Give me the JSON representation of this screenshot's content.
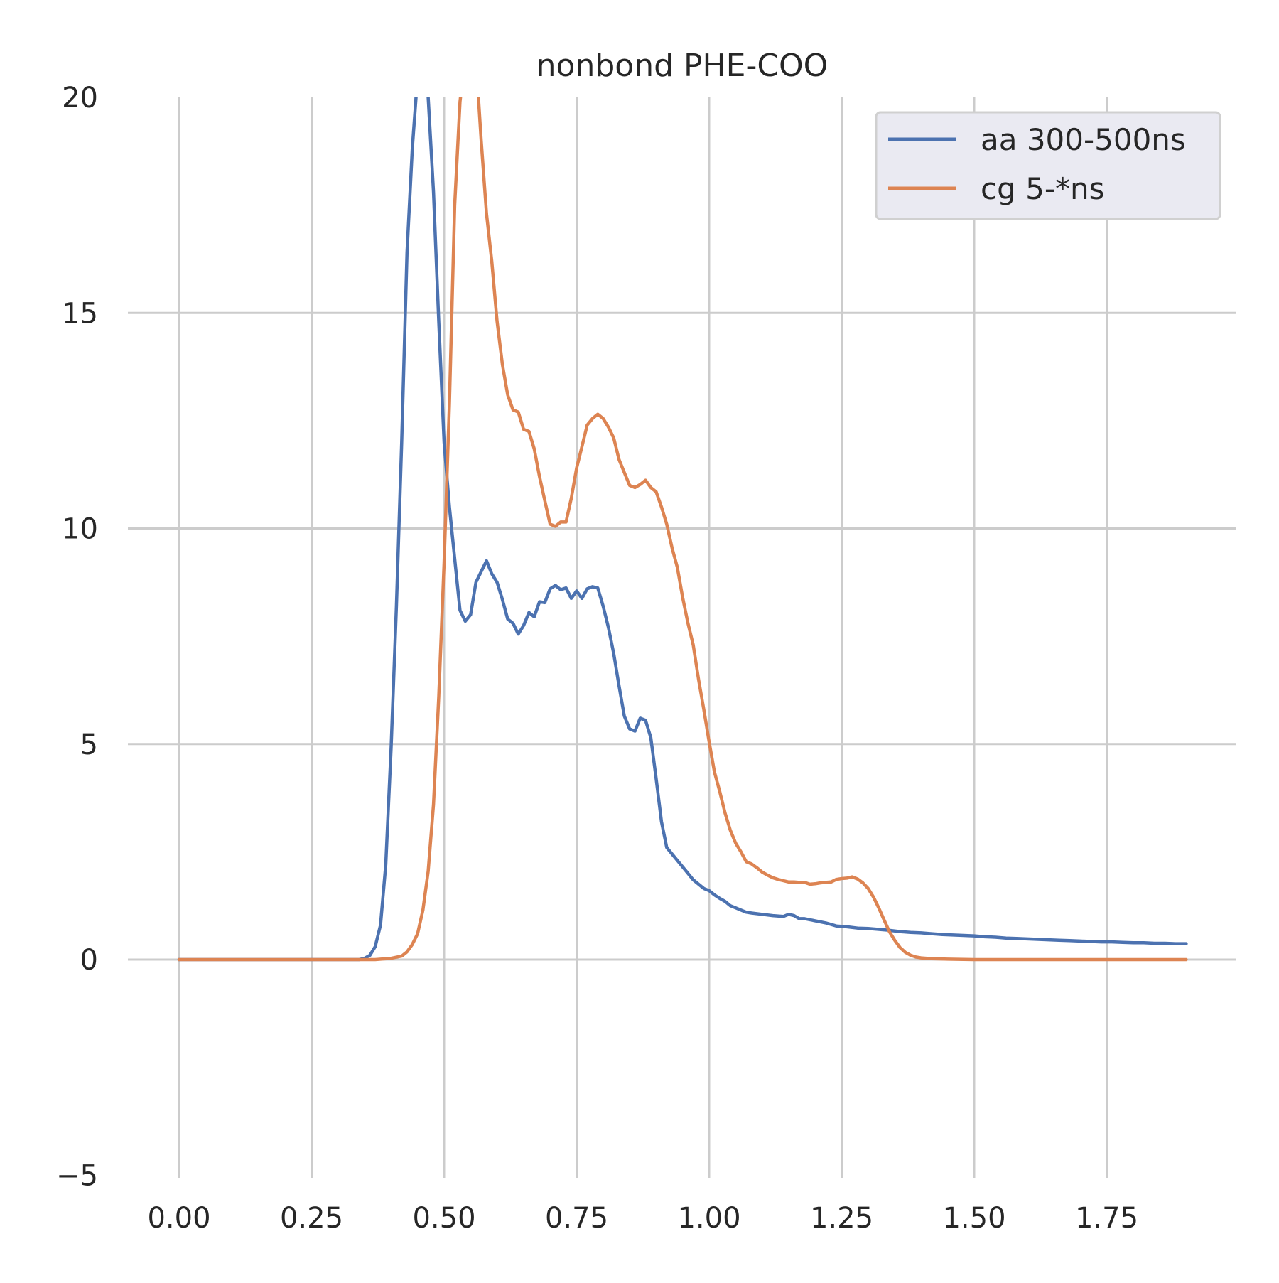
{
  "chart_data": {
    "type": "line",
    "title": "nonbond PHE-COO",
    "xlabel": "",
    "ylabel": "",
    "xlim": [
      -0.09,
      2.0
    ],
    "ylim": [
      -5,
      20
    ],
    "grid": true,
    "legend_position": "top-right",
    "x_ticks": [
      {
        "value": 0.0,
        "label": "0.00"
      },
      {
        "value": 0.25,
        "label": "0.25"
      },
      {
        "value": 0.5,
        "label": "0.50"
      },
      {
        "value": 0.75,
        "label": "0.75"
      },
      {
        "value": 1.0,
        "label": "1.00"
      },
      {
        "value": 1.25,
        "label": "1.25"
      },
      {
        "value": 1.5,
        "label": "1.50"
      },
      {
        "value": 1.75,
        "label": "1.75"
      }
    ],
    "y_ticks": [
      {
        "value": -5,
        "label": "−5"
      },
      {
        "value": 0,
        "label": "0"
      },
      {
        "value": 5,
        "label": "5"
      },
      {
        "value": 10,
        "label": "10"
      },
      {
        "value": 15,
        "label": "15"
      },
      {
        "value": 20,
        "label": "20"
      }
    ],
    "series": [
      {
        "name": "aa 300-500ns",
        "color": "#4c72b0",
        "points": [
          [
            0.0,
            0.0
          ],
          [
            0.1,
            0.0
          ],
          [
            0.2,
            0.0
          ],
          [
            0.3,
            0.0
          ],
          [
            0.34,
            0.0
          ],
          [
            0.35,
            0.03
          ],
          [
            0.36,
            0.1
          ],
          [
            0.37,
            0.3
          ],
          [
            0.38,
            0.8
          ],
          [
            0.39,
            2.2
          ],
          [
            0.4,
            4.9
          ],
          [
            0.41,
            8.2
          ],
          [
            0.42,
            12.0
          ],
          [
            0.43,
            16.4
          ],
          [
            0.44,
            18.8
          ],
          [
            0.45,
            20.5
          ],
          [
            0.46,
            21.5
          ],
          [
            0.47,
            20.0
          ],
          [
            0.48,
            17.8
          ],
          [
            0.49,
            14.8
          ],
          [
            0.5,
            12.0
          ],
          [
            0.51,
            10.5
          ],
          [
            0.52,
            9.3
          ],
          [
            0.53,
            8.1
          ],
          [
            0.54,
            7.85
          ],
          [
            0.55,
            8.0
          ],
          [
            0.56,
            8.75
          ],
          [
            0.57,
            9.0
          ],
          [
            0.58,
            9.25
          ],
          [
            0.59,
            8.95
          ],
          [
            0.6,
            8.75
          ],
          [
            0.61,
            8.35
          ],
          [
            0.62,
            7.9
          ],
          [
            0.63,
            7.8
          ],
          [
            0.64,
            7.55
          ],
          [
            0.65,
            7.75
          ],
          [
            0.66,
            8.05
          ],
          [
            0.67,
            7.95
          ],
          [
            0.68,
            8.3
          ],
          [
            0.69,
            8.28
          ],
          [
            0.7,
            8.6
          ],
          [
            0.71,
            8.68
          ],
          [
            0.72,
            8.58
          ],
          [
            0.73,
            8.62
          ],
          [
            0.74,
            8.38
          ],
          [
            0.75,
            8.55
          ],
          [
            0.76,
            8.38
          ],
          [
            0.77,
            8.6
          ],
          [
            0.78,
            8.65
          ],
          [
            0.79,
            8.62
          ],
          [
            0.8,
            8.2
          ],
          [
            0.81,
            7.7
          ],
          [
            0.82,
            7.1
          ],
          [
            0.83,
            6.35
          ],
          [
            0.84,
            5.65
          ],
          [
            0.85,
            5.35
          ],
          [
            0.86,
            5.3
          ],
          [
            0.87,
            5.6
          ],
          [
            0.88,
            5.55
          ],
          [
            0.89,
            5.15
          ],
          [
            0.9,
            4.2
          ],
          [
            0.91,
            3.2
          ],
          [
            0.92,
            2.6
          ],
          [
            0.93,
            2.45
          ],
          [
            0.94,
            2.3
          ],
          [
            0.95,
            2.15
          ],
          [
            0.96,
            2.0
          ],
          [
            0.97,
            1.85
          ],
          [
            0.98,
            1.75
          ],
          [
            0.99,
            1.65
          ],
          [
            1.0,
            1.6
          ],
          [
            1.01,
            1.5
          ],
          [
            1.02,
            1.42
          ],
          [
            1.03,
            1.35
          ],
          [
            1.04,
            1.25
          ],
          [
            1.05,
            1.2
          ],
          [
            1.06,
            1.15
          ],
          [
            1.07,
            1.1
          ],
          [
            1.08,
            1.08
          ],
          [
            1.1,
            1.05
          ],
          [
            1.12,
            1.02
          ],
          [
            1.14,
            1.0
          ],
          [
            1.15,
            1.05
          ],
          [
            1.16,
            1.02
          ],
          [
            1.17,
            0.95
          ],
          [
            1.18,
            0.95
          ],
          [
            1.2,
            0.9
          ],
          [
            1.22,
            0.85
          ],
          [
            1.24,
            0.78
          ],
          [
            1.26,
            0.76
          ],
          [
            1.28,
            0.73
          ],
          [
            1.3,
            0.72
          ],
          [
            1.32,
            0.7
          ],
          [
            1.34,
            0.68
          ],
          [
            1.36,
            0.65
          ],
          [
            1.38,
            0.63
          ],
          [
            1.4,
            0.62
          ],
          [
            1.42,
            0.6
          ],
          [
            1.44,
            0.58
          ],
          [
            1.46,
            0.57
          ],
          [
            1.48,
            0.56
          ],
          [
            1.5,
            0.55
          ],
          [
            1.52,
            0.53
          ],
          [
            1.54,
            0.52
          ],
          [
            1.56,
            0.5
          ],
          [
            1.58,
            0.49
          ],
          [
            1.6,
            0.48
          ],
          [
            1.62,
            0.47
          ],
          [
            1.64,
            0.46
          ],
          [
            1.66,
            0.45
          ],
          [
            1.68,
            0.44
          ],
          [
            1.7,
            0.43
          ],
          [
            1.72,
            0.42
          ],
          [
            1.74,
            0.41
          ],
          [
            1.76,
            0.41
          ],
          [
            1.78,
            0.4
          ],
          [
            1.8,
            0.39
          ],
          [
            1.82,
            0.39
          ],
          [
            1.84,
            0.38
          ],
          [
            1.86,
            0.38
          ],
          [
            1.88,
            0.37
          ],
          [
            1.9,
            0.37
          ]
        ]
      },
      {
        "name": "cg 5-*ns",
        "color": "#dd8452",
        "points": [
          [
            0.0,
            0.0
          ],
          [
            0.1,
            0.0
          ],
          [
            0.2,
            0.0
          ],
          [
            0.3,
            0.0
          ],
          [
            0.37,
            0.0
          ],
          [
            0.4,
            0.03
          ],
          [
            0.42,
            0.08
          ],
          [
            0.43,
            0.18
          ],
          [
            0.44,
            0.35
          ],
          [
            0.45,
            0.6
          ],
          [
            0.46,
            1.15
          ],
          [
            0.47,
            2.05
          ],
          [
            0.48,
            3.6
          ],
          [
            0.49,
            6.1
          ],
          [
            0.5,
            9.2
          ],
          [
            0.51,
            12.9
          ],
          [
            0.52,
            17.5
          ],
          [
            0.53,
            19.9
          ],
          [
            0.54,
            21.0
          ],
          [
            0.55,
            21.3
          ],
          [
            0.56,
            20.9
          ],
          [
            0.57,
            19.0
          ],
          [
            0.58,
            17.3
          ],
          [
            0.59,
            16.2
          ],
          [
            0.6,
            14.8
          ],
          [
            0.61,
            13.8
          ],
          [
            0.62,
            13.1
          ],
          [
            0.63,
            12.75
          ],
          [
            0.64,
            12.7
          ],
          [
            0.65,
            12.3
          ],
          [
            0.66,
            12.25
          ],
          [
            0.67,
            11.85
          ],
          [
            0.68,
            11.2
          ],
          [
            0.69,
            10.65
          ],
          [
            0.7,
            10.1
          ],
          [
            0.71,
            10.05
          ],
          [
            0.72,
            10.15
          ],
          [
            0.73,
            10.15
          ],
          [
            0.74,
            10.7
          ],
          [
            0.75,
            11.4
          ],
          [
            0.76,
            11.9
          ],
          [
            0.77,
            12.4
          ],
          [
            0.78,
            12.55
          ],
          [
            0.79,
            12.65
          ],
          [
            0.8,
            12.55
          ],
          [
            0.81,
            12.35
          ],
          [
            0.82,
            12.1
          ],
          [
            0.83,
            11.6
          ],
          [
            0.84,
            11.3
          ],
          [
            0.85,
            11.0
          ],
          [
            0.86,
            10.95
          ],
          [
            0.87,
            11.02
          ],
          [
            0.88,
            11.12
          ],
          [
            0.89,
            10.95
          ],
          [
            0.9,
            10.85
          ],
          [
            0.91,
            10.5
          ],
          [
            0.92,
            10.1
          ],
          [
            0.93,
            9.55
          ],
          [
            0.94,
            9.1
          ],
          [
            0.95,
            8.4
          ],
          [
            0.96,
            7.8
          ],
          [
            0.97,
            7.3
          ],
          [
            0.98,
            6.5
          ],
          [
            0.99,
            5.8
          ],
          [
            1.0,
            5.05
          ],
          [
            1.01,
            4.35
          ],
          [
            1.02,
            3.9
          ],
          [
            1.03,
            3.4
          ],
          [
            1.04,
            3.0
          ],
          [
            1.05,
            2.7
          ],
          [
            1.06,
            2.5
          ],
          [
            1.07,
            2.27
          ],
          [
            1.08,
            2.22
          ],
          [
            1.09,
            2.13
          ],
          [
            1.1,
            2.03
          ],
          [
            1.11,
            1.96
          ],
          [
            1.12,
            1.9
          ],
          [
            1.13,
            1.86
          ],
          [
            1.14,
            1.83
          ],
          [
            1.15,
            1.8
          ],
          [
            1.16,
            1.8
          ],
          [
            1.17,
            1.79
          ],
          [
            1.18,
            1.79
          ],
          [
            1.19,
            1.75
          ],
          [
            1.2,
            1.76
          ],
          [
            1.21,
            1.78
          ],
          [
            1.22,
            1.79
          ],
          [
            1.23,
            1.8
          ],
          [
            1.24,
            1.86
          ],
          [
            1.25,
            1.88
          ],
          [
            1.26,
            1.89
          ],
          [
            1.27,
            1.92
          ],
          [
            1.28,
            1.87
          ],
          [
            1.29,
            1.78
          ],
          [
            1.3,
            1.65
          ],
          [
            1.31,
            1.45
          ],
          [
            1.32,
            1.2
          ],
          [
            1.33,
            0.92
          ],
          [
            1.34,
            0.65
          ],
          [
            1.35,
            0.45
          ],
          [
            1.36,
            0.28
          ],
          [
            1.37,
            0.17
          ],
          [
            1.38,
            0.1
          ],
          [
            1.39,
            0.06
          ],
          [
            1.4,
            0.04
          ],
          [
            1.42,
            0.02
          ],
          [
            1.45,
            0.01
          ],
          [
            1.5,
            0.0
          ],
          [
            1.6,
            0.0
          ],
          [
            1.7,
            0.0
          ],
          [
            1.8,
            0.0
          ],
          [
            1.9,
            0.0
          ]
        ]
      }
    ]
  }
}
